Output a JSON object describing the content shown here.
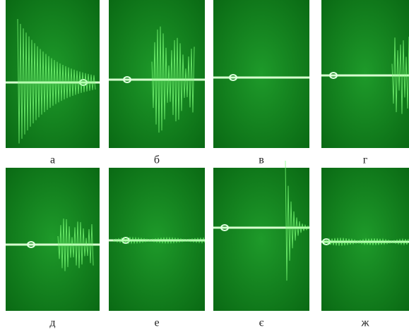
{
  "panels": [
    {
      "label": "а"
    },
    {
      "label": "б"
    },
    {
      "label": "в"
    },
    {
      "label": "г"
    },
    {
      "label": "д"
    },
    {
      "label": "е"
    },
    {
      "label": "є"
    },
    {
      "label": "ж"
    }
  ]
}
